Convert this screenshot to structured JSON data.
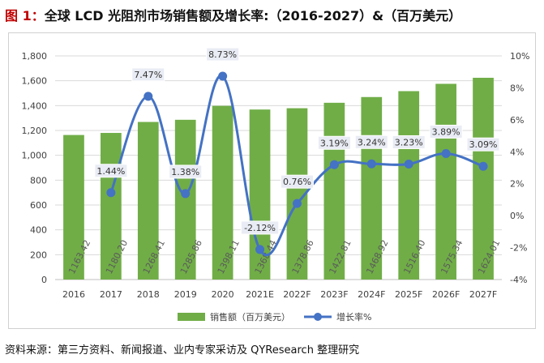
{
  "header": {
    "figure_label": "图 1：",
    "title": "全球 LCD 光阻剂市场销售额及增长率:（2016-2027）&（百万美元）"
  },
  "chart_data": {
    "type": "bar",
    "categories": [
      "2016",
      "2017",
      "2018",
      "2019",
      "2020",
      "2021E",
      "2022F",
      "2023F",
      "2024F",
      "2025F",
      "2026F",
      "2027F"
    ],
    "series": [
      {
        "name": "销售额（百万美元）",
        "type": "bar",
        "axis": "left",
        "color": "#70ad47",
        "values": [
          1163.42,
          1180.2,
          1268.41,
          1285.86,
          1398.11,
          1368.44,
          1378.86,
          1422.81,
          1468.92,
          1516.4,
          1575.34,
          1624.01
        ],
        "labels": [
          "1163.42",
          "1180.20",
          "1268.41",
          "1285.86",
          "1398.11",
          "1368.44",
          "1378.86",
          "1422.81",
          "1468.92",
          "1516.40",
          "1575.34",
          "1624.01"
        ]
      },
      {
        "name": "增长率%",
        "type": "line",
        "axis": "right",
        "color": "#4472c4",
        "values": [
          null,
          1.44,
          7.47,
          1.38,
          8.73,
          -2.12,
          0.76,
          3.19,
          3.24,
          3.23,
          3.89,
          3.09
        ],
        "labels": [
          null,
          "1.44%",
          "7.47%",
          "1.38%",
          "8.73%",
          "-2.12%",
          "0.76%",
          "3.19%",
          "3.24%",
          "3.23%",
          "3.89%",
          "3.09%"
        ]
      }
    ],
    "y_left": {
      "min": 0,
      "max": 1800,
      "step": 200,
      "tick_labels": [
        "0",
        "200",
        "400",
        "600",
        "800",
        "1,000",
        "1,200",
        "1,400",
        "1,600",
        "1,800"
      ]
    },
    "y_right": {
      "min": -4,
      "max": 10,
      "step": 2,
      "tick_labels": [
        "-4%",
        "-2%",
        "0%",
        "2%",
        "4%",
        "6%",
        "8%",
        "10%"
      ]
    },
    "grid": true,
    "legend_position": "bottom"
  },
  "footer": {
    "source": "资料来源：第三方资料、新闻报道、业内专家采访及 QYResearch 整理研究"
  }
}
